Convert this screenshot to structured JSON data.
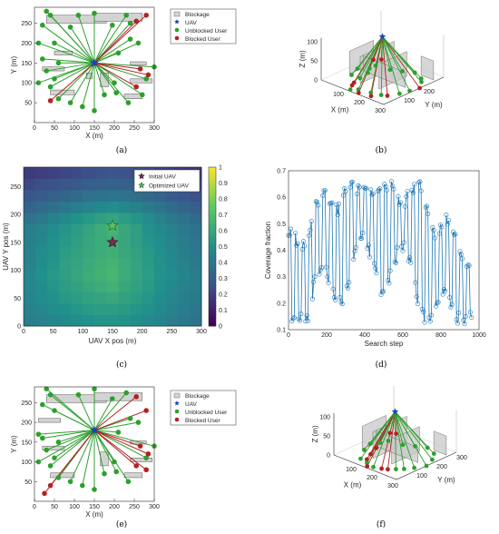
{
  "colors": {
    "green": "#2ca02c",
    "red": "#b22222",
    "uav": "#1f3fbf",
    "block": "#d3d3d3",
    "line": "#1f77b4"
  },
  "legend_ae": [
    "Blockage",
    "UAV",
    "Unblocked User",
    "Blocked User"
  ],
  "legend_c": [
    "Initial UAV",
    "Optimized UAV"
  ],
  "chart_data": [
    {
      "panel": "a",
      "caption": "(a)",
      "type": "scatter",
      "xlabel": "X (m)",
      "ylabel": "Y (m)",
      "xlim": [
        0,
        300
      ],
      "ylim": [
        0,
        290
      ],
      "xticks": [
        0,
        50,
        100,
        150,
        200,
        250,
        300
      ],
      "yticks": [
        50,
        100,
        150,
        200,
        250
      ],
      "uav": [
        150,
        150
      ],
      "blockages": [
        [
          30,
          250,
          150,
          20
        ],
        [
          150,
          255,
          120,
          20
        ],
        [
          50,
          170,
          45,
          10
        ],
        [
          20,
          130,
          55,
          10
        ],
        [
          240,
          145,
          40,
          8
        ],
        [
          40,
          70,
          60,
          12
        ],
        [
          165,
          90,
          20,
          35
        ],
        [
          225,
          60,
          45,
          12
        ],
        [
          240,
          100,
          55,
          10
        ],
        [
          130,
          110,
          15,
          15
        ]
      ],
      "unblocked": [
        [
          30,
          280
        ],
        [
          40,
          270
        ],
        [
          20,
          245
        ],
        [
          90,
          240
        ],
        [
          110,
          270
        ],
        [
          150,
          275
        ],
        [
          195,
          245
        ],
        [
          230,
          270
        ],
        [
          240,
          250
        ],
        [
          50,
          200
        ],
        [
          10,
          200
        ],
        [
          20,
          160
        ],
        [
          60,
          150
        ],
        [
          30,
          130
        ],
        [
          50,
          110
        ],
        [
          10,
          100
        ],
        [
          40,
          90
        ],
        [
          60,
          60
        ],
        [
          90,
          50
        ],
        [
          120,
          40
        ],
        [
          150,
          30
        ],
        [
          175,
          70
        ],
        [
          200,
          100
        ],
        [
          205,
          75
        ],
        [
          235,
          50
        ],
        [
          270,
          70
        ],
        [
          280,
          110
        ],
        [
          300,
          140
        ],
        [
          210,
          175
        ],
        [
          260,
          200
        ],
        [
          240,
          210
        ]
      ],
      "blocked": [
        [
          280,
          270
        ],
        [
          255,
          255
        ],
        [
          265,
          135
        ],
        [
          285,
          120
        ],
        [
          255,
          90
        ],
        [
          40,
          55
        ]
      ]
    },
    {
      "panel": "b",
      "caption": "(b)",
      "type": "scatter3d",
      "xlabel": "X (m)",
      "ylabel": "Y (m)",
      "zlabel": "Z (m)",
      "xticks": [
        100,
        200,
        300
      ],
      "yticks": [
        100,
        200
      ],
      "zticks": [
        0,
        50,
        100
      ]
    },
    {
      "panel": "c",
      "caption": "(c)",
      "type": "heatmap",
      "xlabel": "UAV X pos (m)",
      "ylabel": "UAV Y pos (m)",
      "xticks": [
        0,
        50,
        100,
        150,
        200,
        250,
        300
      ],
      "yticks": [
        0,
        50,
        100,
        150,
        200,
        250
      ],
      "colorbar_ticks": [
        0,
        0.1,
        0.2,
        0.3,
        0.4,
        0.5,
        0.6,
        0.7,
        0.8,
        0.9,
        1
      ],
      "rows": [
        [
          0.42,
          0.44,
          0.45,
          0.47,
          0.49,
          0.5,
          0.52,
          0.52,
          0.51,
          0.49,
          0.47,
          0.45,
          0.42,
          0.4,
          0.38
        ],
        [
          0.44,
          0.46,
          0.48,
          0.5,
          0.52,
          0.54,
          0.55,
          0.55,
          0.54,
          0.52,
          0.5,
          0.47,
          0.44,
          0.42,
          0.4
        ],
        [
          0.45,
          0.48,
          0.5,
          0.53,
          0.55,
          0.57,
          0.58,
          0.6,
          0.57,
          0.55,
          0.52,
          0.49,
          0.46,
          0.43,
          0.41
        ],
        [
          0.46,
          0.49,
          0.52,
          0.55,
          0.57,
          0.6,
          0.62,
          0.64,
          0.6,
          0.57,
          0.54,
          0.5,
          0.47,
          0.44,
          0.42
        ],
        [
          0.46,
          0.5,
          0.53,
          0.56,
          0.59,
          0.62,
          0.64,
          0.66,
          0.62,
          0.58,
          0.55,
          0.51,
          0.48,
          0.45,
          0.42
        ],
        [
          0.45,
          0.49,
          0.52,
          0.56,
          0.58,
          0.61,
          0.63,
          0.65,
          0.61,
          0.58,
          0.54,
          0.51,
          0.47,
          0.44,
          0.41
        ],
        [
          0.44,
          0.48,
          0.51,
          0.55,
          0.57,
          0.6,
          0.62,
          0.63,
          0.6,
          0.57,
          0.53,
          0.5,
          0.46,
          0.43,
          0.4
        ],
        [
          0.43,
          0.46,
          0.5,
          0.53,
          0.56,
          0.59,
          0.61,
          0.63,
          0.59,
          0.56,
          0.52,
          0.49,
          0.45,
          0.42,
          0.39
        ],
        [
          0.42,
          0.45,
          0.48,
          0.52,
          0.55,
          0.58,
          0.62,
          0.65,
          0.6,
          0.56,
          0.51,
          0.47,
          0.44,
          0.41,
          0.38
        ],
        [
          0.38,
          0.41,
          0.44,
          0.47,
          0.5,
          0.53,
          0.56,
          0.58,
          0.55,
          0.52,
          0.48,
          0.44,
          0.41,
          0.38,
          0.35
        ],
        [
          0.32,
          0.35,
          0.37,
          0.4,
          0.42,
          0.45,
          0.47,
          0.48,
          0.46,
          0.44,
          0.41,
          0.38,
          0.35,
          0.32,
          0.3
        ],
        [
          0.27,
          0.29,
          0.31,
          0.33,
          0.35,
          0.37,
          0.38,
          0.39,
          0.38,
          0.36,
          0.34,
          0.32,
          0.29,
          0.27,
          0.25
        ],
        [
          0.22,
          0.24,
          0.25,
          0.27,
          0.28,
          0.3,
          0.31,
          0.32,
          0.31,
          0.29,
          0.28,
          0.26,
          0.24,
          0.22,
          0.21
        ],
        [
          0.18,
          0.19,
          0.2,
          0.22,
          0.23,
          0.24,
          0.25,
          0.26,
          0.25,
          0.24,
          0.23,
          0.21,
          0.19,
          0.18,
          0.17
        ]
      ],
      "initial_uav": [
        150,
        150
      ],
      "optimized_uav": [
        150,
        180
      ]
    },
    {
      "panel": "d",
      "caption": "(d)",
      "type": "line",
      "xlabel": "Search step",
      "ylabel": "Coverage fraction",
      "xlim": [
        0,
        1000
      ],
      "ylim": [
        0.1,
        0.7
      ],
      "xticks": [
        0,
        200,
        400,
        600,
        800,
        1000
      ],
      "yticks": [
        0.1,
        0.2,
        0.3,
        0.4,
        0.5,
        0.6,
        0.7
      ]
    },
    {
      "panel": "e",
      "caption": "(e)",
      "type": "scatter",
      "xlabel": "X (m)",
      "ylabel": "Y (m)",
      "xlim": [
        0,
        300
      ],
      "ylim": [
        0,
        290
      ],
      "xticks": [
        0,
        50,
        100,
        150,
        200,
        250,
        300
      ],
      "yticks": [
        50,
        100,
        150,
        200,
        250
      ],
      "uav": [
        150,
        180
      ],
      "blockages": [
        [
          30,
          250,
          150,
          20
        ],
        [
          150,
          255,
          120,
          20
        ],
        [
          10,
          200,
          55,
          10
        ],
        [
          20,
          130,
          55,
          10
        ],
        [
          240,
          145,
          40,
          8
        ],
        [
          40,
          60,
          60,
          12
        ],
        [
          165,
          90,
          20,
          35
        ],
        [
          225,
          60,
          45,
          12
        ],
        [
          240,
          100,
          55,
          10
        ]
      ],
      "unblocked": [
        [
          30,
          285
        ],
        [
          40,
          270
        ],
        [
          20,
          245
        ],
        [
          110,
          270
        ],
        [
          150,
          285
        ],
        [
          195,
          260
        ],
        [
          230,
          275
        ],
        [
          50,
          230
        ],
        [
          10,
          170
        ],
        [
          20,
          160
        ],
        [
          60,
          150
        ],
        [
          30,
          130
        ],
        [
          50,
          110
        ],
        [
          10,
          100
        ],
        [
          40,
          90
        ],
        [
          60,
          60
        ],
        [
          90,
          50
        ],
        [
          120,
          40
        ],
        [
          150,
          30
        ],
        [
          175,
          70
        ],
        [
          200,
          100
        ],
        [
          205,
          75
        ],
        [
          235,
          50
        ],
        [
          280,
          110
        ],
        [
          300,
          140
        ],
        [
          210,
          175
        ],
        [
          260,
          200
        ],
        [
          240,
          210
        ]
      ],
      "blocked": [
        [
          255,
          265
        ],
        [
          280,
          230
        ],
        [
          265,
          140
        ],
        [
          285,
          120
        ],
        [
          255,
          90
        ],
        [
          280,
          80
        ],
        [
          40,
          40
        ],
        [
          25,
          20
        ]
      ]
    },
    {
      "panel": "f",
      "caption": "(f)",
      "type": "scatter3d",
      "xlabel": "X (m)",
      "ylabel": "Y (m)",
      "zlabel": "Z (m)",
      "xticks": [
        100,
        200,
        300
      ],
      "yticks": [
        100,
        200,
        300
      ],
      "zticks": [
        0,
        50,
        100
      ]
    }
  ]
}
